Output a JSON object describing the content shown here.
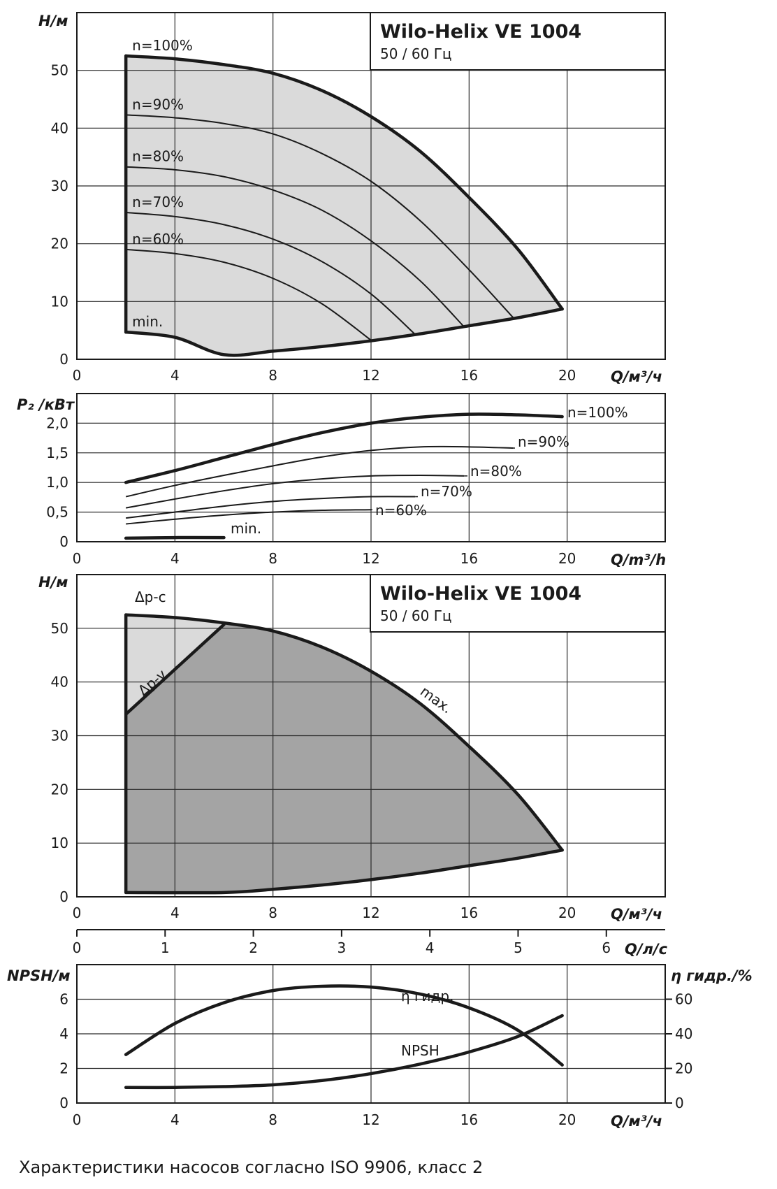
{
  "chart_data": [
    {
      "id": "head",
      "type": "line",
      "title": "Wilo-Helix VE 1004",
      "subtitle": "50 / 60 Гц",
      "ylabel": "H/м",
      "xlabel": "Q/м³/ч",
      "xlim": [
        0,
        24
      ],
      "ylim": [
        0,
        60
      ],
      "xticks": [
        "0",
        "4",
        "8",
        "12",
        "16",
        "20"
      ],
      "yticks": [
        "0",
        "10",
        "20",
        "30",
        "40",
        "50"
      ],
      "grid": true,
      "fill_color": "#dadada",
      "series": [
        {
          "name": "n=100%",
          "x": [
            2,
            4,
            6,
            8,
            10,
            12,
            14,
            16,
            18,
            19.8
          ],
          "y": [
            52.5,
            52.0,
            51.0,
            49.5,
            46.5,
            42.0,
            36.0,
            28.0,
            19.0,
            8.7
          ]
        },
        {
          "name": "n=90%",
          "x": [
            2,
            4,
            6,
            8,
            10,
            12,
            14,
            16,
            17.8
          ],
          "y": [
            42.3,
            41.8,
            40.8,
            39.0,
            35.6,
            30.8,
            24.0,
            15.5,
            7.2
          ]
        },
        {
          "name": "n=80%",
          "x": [
            2,
            4,
            6,
            8,
            10,
            12,
            14,
            15.8
          ],
          "y": [
            33.3,
            32.8,
            31.6,
            29.3,
            25.8,
            20.5,
            13.6,
            5.6
          ]
        },
        {
          "name": "n=70%",
          "x": [
            2,
            4,
            6,
            8,
            10,
            12,
            13.8
          ],
          "y": [
            25.4,
            24.7,
            23.3,
            20.8,
            16.9,
            11.3,
            4.3
          ]
        },
        {
          "name": "n=60%",
          "x": [
            2,
            4,
            6,
            8,
            10,
            12
          ],
          "y": [
            19.0,
            18.3,
            16.8,
            14.0,
            9.6,
            3.3
          ]
        },
        {
          "name": "min.",
          "x": [
            2,
            4,
            6,
            8,
            10,
            12,
            14,
            16,
            18,
            19.8
          ],
          "y": [
            4.7,
            3.8,
            0.8,
            1.4,
            2.2,
            3.2,
            4.4,
            5.8,
            7.2,
            8.7
          ]
        }
      ],
      "labels": [
        "n=100%",
        "n=90%",
        "n=80%",
        "n=70%",
        "n=60%",
        "min."
      ]
    },
    {
      "id": "power",
      "type": "line",
      "ylabel": "P₂ /кВт",
      "xlabel": "Q/m³/h",
      "xlim": [
        0,
        24
      ],
      "ylim": [
        0,
        2.5
      ],
      "xticks": [
        "0",
        "4",
        "8",
        "12",
        "16",
        "20"
      ],
      "yticks": [
        "0",
        "0,5",
        "1,0",
        "1,5",
        "2,0"
      ],
      "grid": true,
      "series": [
        {
          "name": "n=100%",
          "x": [
            2,
            4,
            6,
            8,
            10,
            12,
            14,
            16,
            18,
            19.8
          ],
          "y": [
            1.0,
            1.2,
            1.42,
            1.64,
            1.84,
            2.0,
            2.1,
            2.15,
            2.14,
            2.11
          ]
        },
        {
          "name": "n=90%",
          "x": [
            2,
            4,
            6,
            8,
            10,
            12,
            14,
            16,
            17.8
          ],
          "y": [
            0.76,
            0.95,
            1.12,
            1.28,
            1.43,
            1.54,
            1.6,
            1.6,
            1.58
          ]
        },
        {
          "name": "n=80%",
          "x": [
            2,
            4,
            6,
            8,
            10,
            12,
            14,
            15.8
          ],
          "y": [
            0.57,
            0.72,
            0.86,
            0.98,
            1.06,
            1.11,
            1.12,
            1.11
          ]
        },
        {
          "name": "n=70%",
          "x": [
            2,
            4,
            6,
            8,
            10,
            12,
            13.8
          ],
          "y": [
            0.4,
            0.5,
            0.6,
            0.68,
            0.73,
            0.76,
            0.76
          ]
        },
        {
          "name": "n=60%",
          "x": [
            2,
            4,
            6,
            8,
            10,
            12
          ],
          "y": [
            0.3,
            0.38,
            0.45,
            0.5,
            0.53,
            0.54
          ]
        },
        {
          "name": "min.",
          "x": [
            2,
            4,
            6
          ],
          "y": [
            0.06,
            0.07,
            0.07
          ]
        }
      ],
      "labels": [
        "n=100%",
        "n=90%",
        "n=80%",
        "n=70%",
        "n=60%",
        "min."
      ]
    },
    {
      "id": "control",
      "type": "area",
      "title": "Wilo-Helix VE 1004",
      "subtitle": "50 / 60 Гц",
      "ylabel": "H/м",
      "xlabel": "Q/м³/ч",
      "xlim": [
        0,
        24
      ],
      "ylim": [
        0,
        60
      ],
      "xticks": [
        "0",
        "4",
        "8",
        "12",
        "16",
        "20"
      ],
      "yticks": [
        "0",
        "10",
        "20",
        "30",
        "40",
        "50"
      ],
      "grid": true,
      "colors": {
        "dp_c": "#dadada",
        "dp_v": "#a4a4a4"
      },
      "series": [
        {
          "name": "max.",
          "x": [
            2,
            4,
            6,
            8,
            10,
            12,
            14,
            16,
            18,
            19.8
          ],
          "y": [
            52.5,
            52.0,
            51.0,
            49.5,
            46.5,
            42.0,
            36.0,
            28.0,
            19.0,
            8.7
          ]
        },
        {
          "name": "Δp-v",
          "x": [
            2,
            6
          ],
          "y": [
            34.0,
            50.7
          ]
        },
        {
          "name": "",
          "x": [
            2,
            6,
            8,
            10,
            12,
            14,
            16,
            18,
            19.8
          ],
          "y": [
            0.8,
            0.8,
            1.4,
            2.2,
            3.2,
            4.4,
            5.8,
            7.2,
            8.7
          ]
        }
      ],
      "labels": [
        "Δp-c",
        "Δp-v",
        "max."
      ]
    },
    {
      "id": "flow_ls",
      "type": "axis",
      "xlabel": "Q/л/с",
      "xlim": [
        0,
        6.667
      ],
      "xticks": [
        "0",
        "1",
        "2",
        "3",
        "4",
        "5",
        "6"
      ]
    },
    {
      "id": "npsh",
      "type": "line",
      "ylabel": "NPSH/м",
      "y2label": "η гидр./%",
      "xlabel": "Q/м³/ч",
      "xlim": [
        0,
        24
      ],
      "ylim": [
        0,
        8
      ],
      "y2lim": [
        0,
        80
      ],
      "xticks": [
        "0",
        "4",
        "8",
        "12",
        "16",
        "20"
      ],
      "yticks": [
        "0",
        "2",
        "4",
        "6"
      ],
      "y2ticks": [
        "0",
        "20",
        "40",
        "60"
      ],
      "grid": true,
      "series": [
        {
          "name": "η гидр.",
          "axis": "right",
          "x": [
            2,
            4,
            6,
            8,
            10,
            12,
            14,
            16,
            18,
            19.8
          ],
          "y": [
            28,
            46,
            58,
            65,
            67.5,
            67,
            63,
            55,
            42,
            22
          ]
        },
        {
          "name": "NPSH",
          "axis": "left",
          "x": [
            2,
            4,
            6,
            8,
            10,
            12,
            14,
            16,
            18,
            19.8
          ],
          "y": [
            0.9,
            0.9,
            0.95,
            1.05,
            1.3,
            1.7,
            2.25,
            2.95,
            3.85,
            5.05
          ]
        }
      ],
      "labels": [
        "η гидр.",
        "NPSH"
      ]
    }
  ],
  "caption": "Характеристики насосов согласно ISO 9906, класс 2"
}
